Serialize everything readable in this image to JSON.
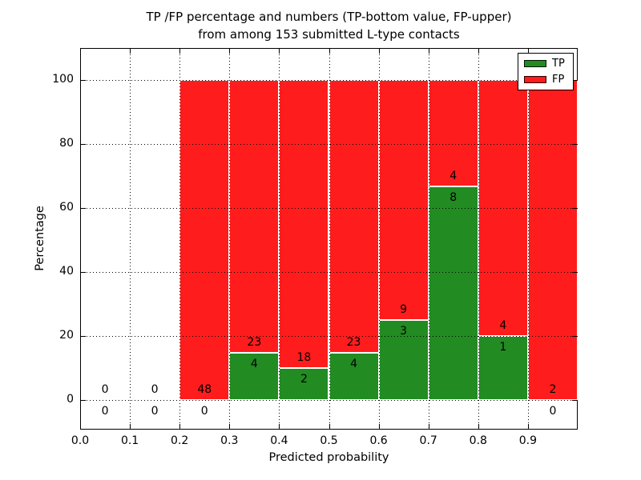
{
  "chart_data": {
    "type": "bar",
    "stacked": true,
    "normalized_percent": true,
    "title_lines": [
      "TP /FP percentage and numbers (TP-bottom value, FP-upper)",
      "from among 153 submitted L-type contacts"
    ],
    "xlabel": "Predicted probability",
    "ylabel": "Percentage",
    "total_contacts": 153,
    "xlim": [
      0.0,
      1.0
    ],
    "ylim": [
      -10,
      110
    ],
    "grid": true,
    "bin_edges": [
      0.0,
      0.1,
      0.2,
      0.3,
      0.4,
      0.5,
      0.6,
      0.7,
      0.8,
      0.9,
      1.0
    ],
    "x_ticks": [
      {
        "v": 0.0,
        "label": "0.0"
      },
      {
        "v": 0.1,
        "label": "0.1"
      },
      {
        "v": 0.2,
        "label": "0.2"
      },
      {
        "v": 0.3,
        "label": "0.3"
      },
      {
        "v": 0.4,
        "label": "0.4"
      },
      {
        "v": 0.5,
        "label": "0.5"
      },
      {
        "v": 0.6,
        "label": "0.6"
      },
      {
        "v": 0.7,
        "label": "0.7"
      },
      {
        "v": 0.8,
        "label": "0.8"
      },
      {
        "v": 0.9,
        "label": "0.9"
      }
    ],
    "y_ticks": [
      {
        "v": 0,
        "label": "0"
      },
      {
        "v": 20,
        "label": "20"
      },
      {
        "v": 40,
        "label": "40"
      },
      {
        "v": 60,
        "label": "60"
      },
      {
        "v": 80,
        "label": "80"
      },
      {
        "v": 100,
        "label": "100"
      }
    ],
    "series": [
      {
        "name": "TP",
        "color": "#228b22",
        "counts": [
          0,
          0,
          0,
          4,
          2,
          4,
          3,
          8,
          1,
          0
        ],
        "percent": [
          0,
          0,
          0,
          14.81,
          10.0,
          14.81,
          25.0,
          66.67,
          20.0,
          0
        ]
      },
      {
        "name": "FP",
        "color": "#ff1c1c",
        "counts": [
          0,
          0,
          48,
          23,
          18,
          23,
          9,
          4,
          4,
          2
        ],
        "percent": [
          0,
          0,
          100.0,
          85.19,
          90.0,
          85.19,
          75.0,
          33.33,
          80.0,
          100.0
        ]
      }
    ],
    "legend": {
      "position": "upper right",
      "entries": [
        {
          "label": "TP",
          "color": "#228b22"
        },
        {
          "label": "FP",
          "color": "#ff1c1c"
        }
      ]
    }
  }
}
